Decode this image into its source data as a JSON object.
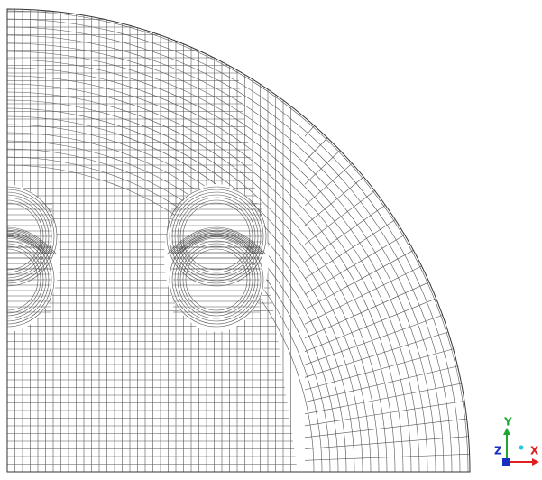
{
  "axis_triad": {
    "y_label": "Y",
    "z_label": "Z",
    "x_label": "X"
  }
}
